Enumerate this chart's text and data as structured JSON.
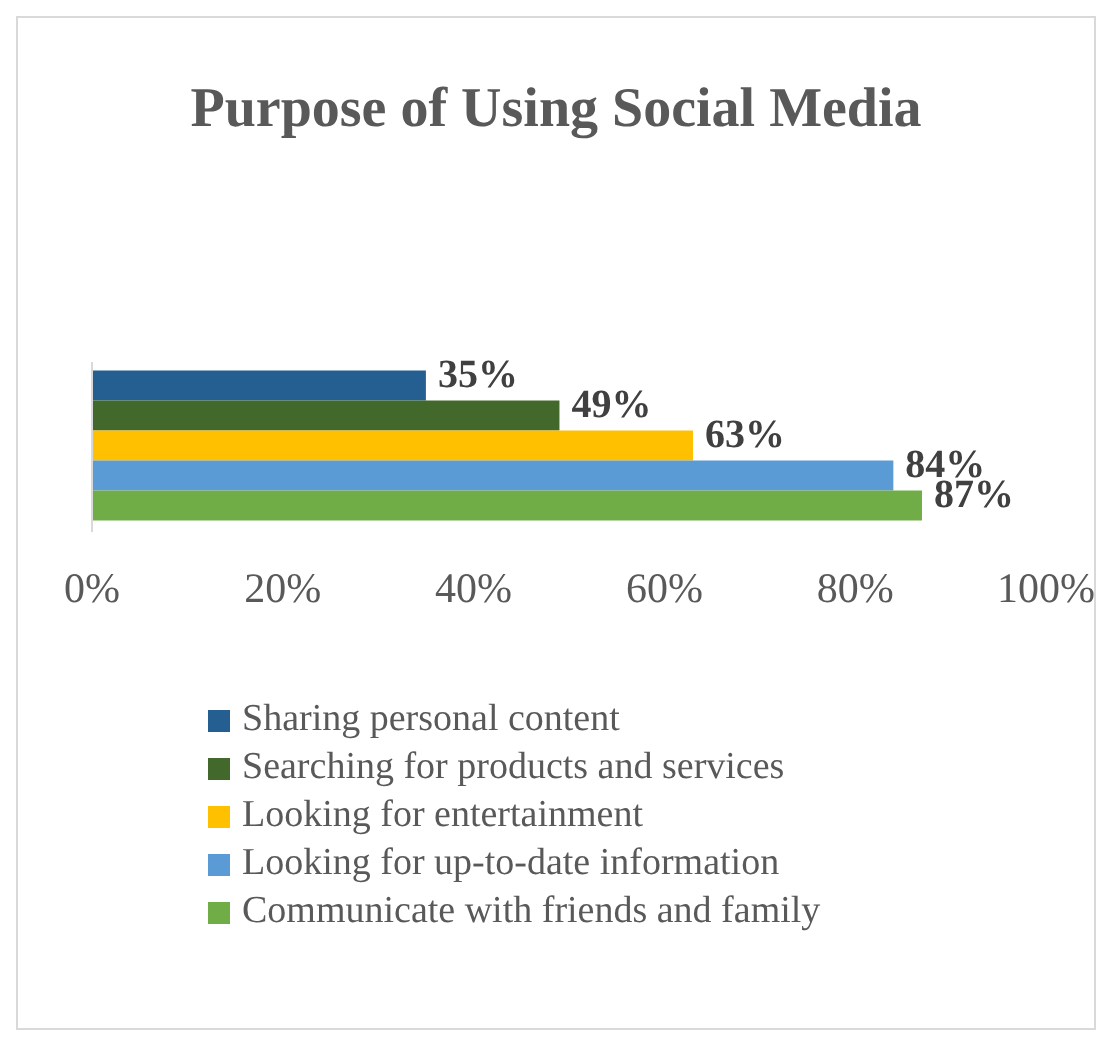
{
  "chart_data": {
    "type": "bar",
    "orientation": "horizontal",
    "title": "Purpose of Using Social Media",
    "categories": [
      null
    ],
    "series": [
      {
        "name": "Sharing personal content",
        "color": "#255e91",
        "values": [
          35
        ],
        "value_labels": [
          "35%"
        ]
      },
      {
        "name": "Searching for products and services",
        "color": "#43682b",
        "values": [
          49
        ],
        "value_labels": [
          "49%"
        ]
      },
      {
        "name": "Looking for entertainment",
        "color": "#ffc000",
        "values": [
          63
        ],
        "value_labels": [
          "63%"
        ]
      },
      {
        "name": "Looking for up-to-date information",
        "color": "#5b9bd5",
        "values": [
          84
        ],
        "value_labels": [
          "84%"
        ]
      },
      {
        "name": "Communicate with friends and family",
        "color": "#70ad47",
        "values": [
          87
        ],
        "value_labels": [
          "87%"
        ]
      }
    ],
    "xlim": [
      0,
      100
    ],
    "xticks": [
      {
        "value": 0,
        "label": "0%"
      },
      {
        "value": 20,
        "label": "20%"
      },
      {
        "value": 40,
        "label": "40%"
      },
      {
        "value": 60,
        "label": "60%"
      },
      {
        "value": 80,
        "label": "80%"
      },
      {
        "value": 100,
        "label": "100%"
      }
    ],
    "tick_labels": "x",
    "grid": false,
    "legend": "bottom"
  }
}
